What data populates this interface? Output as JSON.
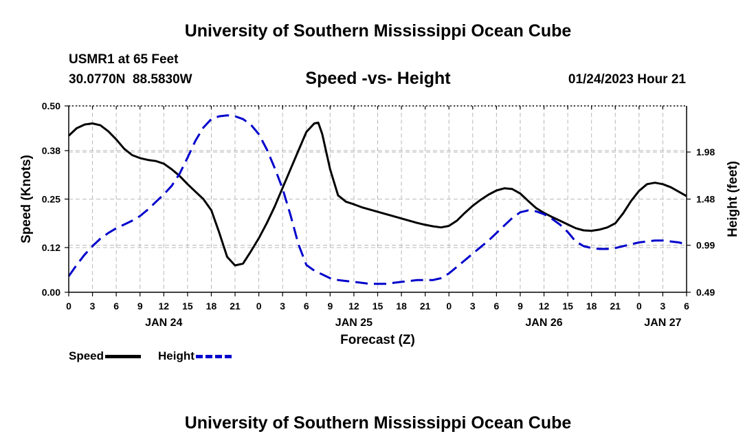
{
  "header": {
    "title": "University of Southern Mississippi Ocean Cube",
    "station": "USMR1 at 65 Feet",
    "lat": "30.0770N",
    "lon": "88.5830W",
    "datetime": "01/24/2023 Hour 21"
  },
  "footer": {
    "title": "University of Southern Mississippi Ocean Cube"
  },
  "legend": {
    "speed_label": "Speed",
    "height_label": "Height"
  },
  "colors": {
    "speed": "#000000",
    "height": "#0000cc",
    "grid": "#b8b8b8"
  },
  "chart_data": {
    "type": "line",
    "title": "Speed -vs- Height",
    "xlabel": "Forecast (Z)",
    "ylabel": "Speed (Knots)",
    "y2label": "Height (feet)",
    "grid": true,
    "legend_position": "bottom-left",
    "x_range_hours": [
      0,
      78
    ],
    "ylim": [
      0,
      0.5
    ],
    "y_ticks": [
      "0.00",
      "0.12",
      "0.25",
      "0.38",
      "0.50"
    ],
    "y2lim": [
      0.49,
      2.47
    ],
    "y2_ticks": [
      "0.49",
      "0.99",
      "1.48",
      "1.98"
    ],
    "x_tick_labels": [
      "0",
      "3",
      "6",
      "9",
      "12",
      "15",
      "18",
      "21",
      "0",
      "3",
      "6",
      "9",
      "12",
      "15",
      "18",
      "21",
      "0",
      "3",
      "6",
      "9",
      "12",
      "15",
      "18",
      "21",
      "0",
      "3",
      "6"
    ],
    "date_labels": [
      {
        "label": "JAN 24",
        "hour": 12
      },
      {
        "label": "JAN 25",
        "hour": 36
      },
      {
        "label": "JAN 26",
        "hour": 60
      },
      {
        "label": "JAN 27",
        "hour": 75
      }
    ],
    "series": [
      {
        "name": "Speed",
        "axis": "left",
        "style": "solid",
        "points": [
          [
            0,
            0.42
          ],
          [
            1,
            0.44
          ],
          [
            2,
            0.45
          ],
          [
            3,
            0.453
          ],
          [
            4,
            0.448
          ],
          [
            5,
            0.432
          ],
          [
            6,
            0.41
          ],
          [
            7,
            0.385
          ],
          [
            8,
            0.368
          ],
          [
            9,
            0.36
          ],
          [
            10,
            0.355
          ],
          [
            11,
            0.352
          ],
          [
            12,
            0.345
          ],
          [
            13,
            0.33
          ],
          [
            14,
            0.312
          ],
          [
            15,
            0.29
          ],
          [
            16,
            0.27
          ],
          [
            17,
            0.25
          ],
          [
            18,
            0.22
          ],
          [
            19,
            0.16
          ],
          [
            20,
            0.095
          ],
          [
            21,
            0.072
          ],
          [
            22,
            0.077
          ],
          [
            23,
            0.11
          ],
          [
            24,
            0.145
          ],
          [
            25,
            0.185
          ],
          [
            26,
            0.23
          ],
          [
            27,
            0.28
          ],
          [
            28,
            0.33
          ],
          [
            29,
            0.38
          ],
          [
            30,
            0.43
          ],
          [
            31,
            0.453
          ],
          [
            31.5,
            0.455
          ],
          [
            32,
            0.425
          ],
          [
            33,
            0.33
          ],
          [
            34,
            0.26
          ],
          [
            35,
            0.243
          ],
          [
            36,
            0.236
          ],
          [
            37,
            0.228
          ],
          [
            38,
            0.222
          ],
          [
            39,
            0.216
          ],
          [
            40,
            0.21
          ],
          [
            41,
            0.204
          ],
          [
            42,
            0.198
          ],
          [
            43,
            0.192
          ],
          [
            44,
            0.186
          ],
          [
            45,
            0.181
          ],
          [
            46,
            0.177
          ],
          [
            47,
            0.174
          ],
          [
            48,
            0.178
          ],
          [
            49,
            0.192
          ],
          [
            50,
            0.213
          ],
          [
            51,
            0.232
          ],
          [
            52,
            0.248
          ],
          [
            53,
            0.262
          ],
          [
            54,
            0.273
          ],
          [
            55,
            0.279
          ],
          [
            56,
            0.277
          ],
          [
            57,
            0.265
          ],
          [
            58,
            0.245
          ],
          [
            59,
            0.226
          ],
          [
            60,
            0.213
          ],
          [
            61,
            0.202
          ],
          [
            62,
            0.192
          ],
          [
            63,
            0.182
          ],
          [
            64,
            0.172
          ],
          [
            65,
            0.166
          ],
          [
            66,
            0.165
          ],
          [
            67,
            0.168
          ],
          [
            68,
            0.174
          ],
          [
            69,
            0.185
          ],
          [
            70,
            0.212
          ],
          [
            71,
            0.245
          ],
          [
            72,
            0.272
          ],
          [
            73,
            0.29
          ],
          [
            74,
            0.294
          ],
          [
            75,
            0.29
          ],
          [
            76,
            0.282
          ],
          [
            77,
            0.27
          ],
          [
            78,
            0.258
          ]
        ]
      },
      {
        "name": "Height",
        "axis": "right",
        "style": "dashed",
        "points": [
          [
            0,
            0.66
          ],
          [
            1,
            0.78
          ],
          [
            2,
            0.89
          ],
          [
            3,
            0.98
          ],
          [
            4,
            1.06
          ],
          [
            5,
            1.12
          ],
          [
            6,
            1.17
          ],
          [
            7,
            1.21
          ],
          [
            8,
            1.25
          ],
          [
            9,
            1.3
          ],
          [
            10,
            1.37
          ],
          [
            11,
            1.45
          ],
          [
            12,
            1.53
          ],
          [
            13,
            1.62
          ],
          [
            14,
            1.75
          ],
          [
            15,
            1.92
          ],
          [
            16,
            2.1
          ],
          [
            17,
            2.24
          ],
          [
            18,
            2.33
          ],
          [
            19,
            2.36
          ],
          [
            20,
            2.37
          ],
          [
            21,
            2.36
          ],
          [
            22,
            2.33
          ],
          [
            23,
            2.27
          ],
          [
            24,
            2.17
          ],
          [
            25,
            2.01
          ],
          [
            26,
            1.81
          ],
          [
            27,
            1.59
          ],
          [
            28,
            1.31
          ],
          [
            29,
            1.0
          ],
          [
            30,
            0.78
          ],
          [
            31,
            0.72
          ],
          [
            32,
            0.68
          ],
          [
            33,
            0.64
          ],
          [
            34,
            0.62
          ],
          [
            35,
            0.61
          ],
          [
            36,
            0.6
          ],
          [
            37,
            0.59
          ],
          [
            38,
            0.58
          ],
          [
            39,
            0.58
          ],
          [
            40,
            0.58
          ],
          [
            41,
            0.59
          ],
          [
            42,
            0.6
          ],
          [
            43,
            0.61
          ],
          [
            44,
            0.62
          ],
          [
            45,
            0.62
          ],
          [
            46,
            0.62
          ],
          [
            47,
            0.64
          ],
          [
            48,
            0.69
          ],
          [
            49,
            0.76
          ],
          [
            50,
            0.83
          ],
          [
            51,
            0.9
          ],
          [
            52,
            0.97
          ],
          [
            53,
            1.04
          ],
          [
            54,
            1.12
          ],
          [
            55,
            1.2
          ],
          [
            56,
            1.28
          ],
          [
            57,
            1.34
          ],
          [
            58,
            1.36
          ],
          [
            59,
            1.35
          ],
          [
            60,
            1.32
          ],
          [
            61,
            1.27
          ],
          [
            62,
            1.21
          ],
          [
            63,
            1.13
          ],
          [
            64,
            1.03
          ],
          [
            65,
            0.98
          ],
          [
            66,
            0.96
          ],
          [
            67,
            0.95
          ],
          [
            68,
            0.95
          ],
          [
            69,
            0.96
          ],
          [
            70,
            0.98
          ],
          [
            71,
            1.0
          ],
          [
            72,
            1.02
          ],
          [
            73,
            1.03
          ],
          [
            74,
            1.04
          ],
          [
            75,
            1.04
          ],
          [
            76,
            1.03
          ],
          [
            77,
            1.02
          ],
          [
            78,
            1.0
          ]
        ]
      }
    ]
  }
}
